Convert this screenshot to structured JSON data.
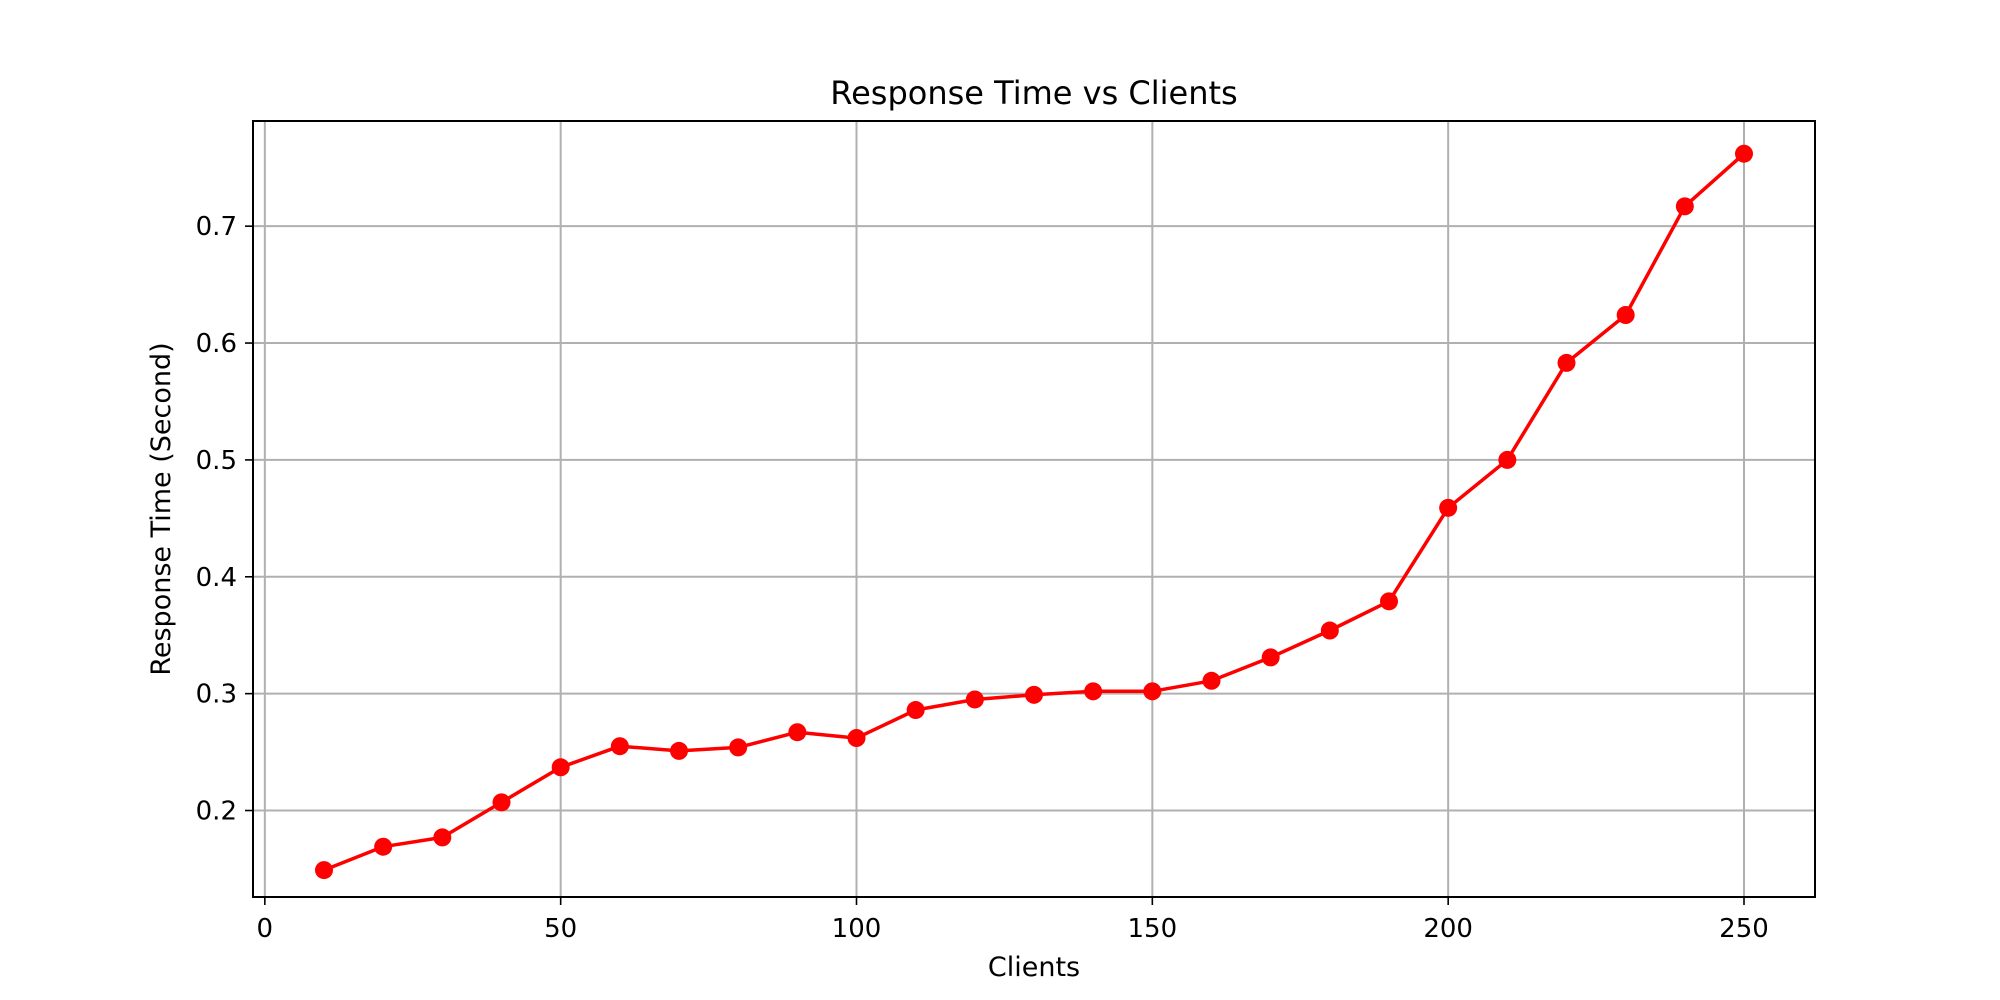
{
  "chart_data": {
    "type": "line",
    "title": "Response Time vs Clients",
    "xlabel": "Clients",
    "ylabel": "Response Time (Second)",
    "xlim": [
      -2,
      262
    ],
    "ylim": [
      0.126,
      0.79
    ],
    "xticks": [
      0,
      50,
      100,
      150,
      200,
      250
    ],
    "xtick_labels": [
      "0",
      "50",
      "100",
      "150",
      "200",
      "250"
    ],
    "yticks": [
      0.2,
      0.3,
      0.4,
      0.5,
      0.6,
      0.7
    ],
    "ytick_labels": [
      "0.2",
      "0.3",
      "0.4",
      "0.5",
      "0.6",
      "0.7"
    ],
    "grid": true,
    "series": [
      {
        "color": "#ff0000",
        "marker": "circle",
        "x": [
          10,
          20,
          30,
          40,
          50,
          60,
          70,
          80,
          90,
          100,
          110,
          120,
          130,
          140,
          150,
          160,
          170,
          180,
          190,
          200,
          210,
          220,
          230,
          240,
          250
        ],
        "y": [
          0.149,
          0.169,
          0.177,
          0.207,
          0.237,
          0.255,
          0.251,
          0.254,
          0.267,
          0.262,
          0.286,
          0.295,
          0.299,
          0.302,
          0.302,
          0.311,
          0.331,
          0.354,
          0.379,
          0.459,
          0.5,
          0.583,
          0.624,
          0.717,
          0.762
        ]
      }
    ]
  }
}
